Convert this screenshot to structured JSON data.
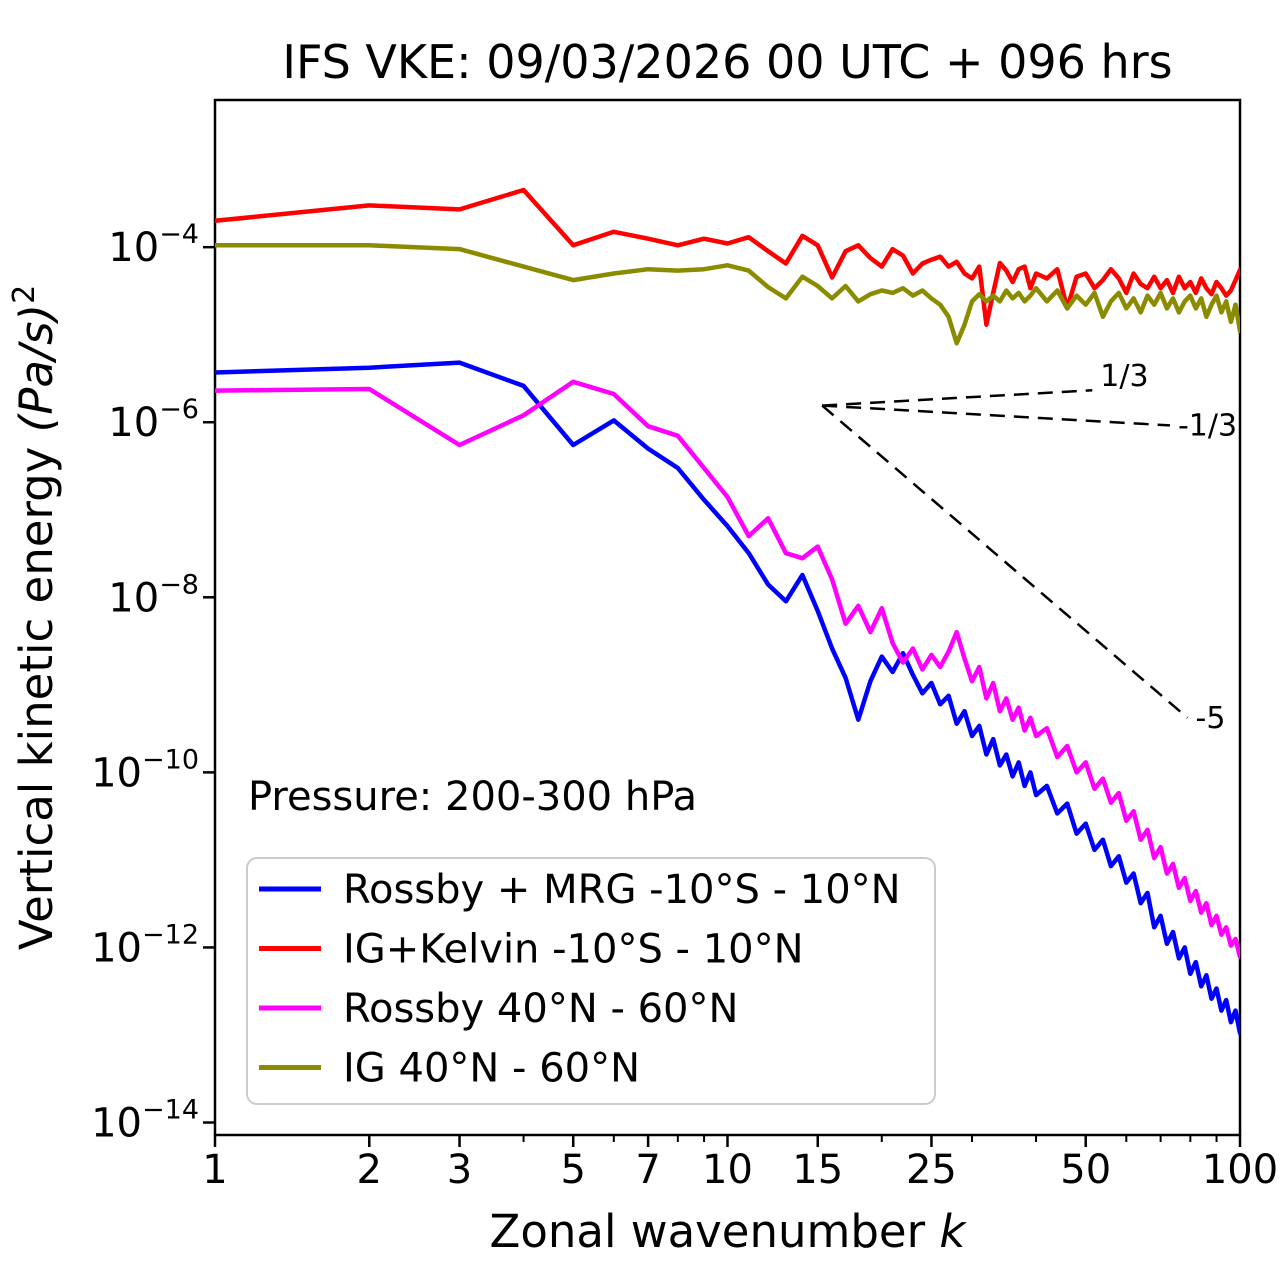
{
  "figure": {
    "title": "IFS VKE: 09/03/2026 00 UTC + 096 hrs"
  },
  "chart_data": {
    "type": "line",
    "title": "IFS VKE: 09/03/2026 00 UTC + 096 hrs",
    "xscale": "log",
    "yscale": "log",
    "xlabel_prefix": "Zonal wavenumber ",
    "xlabel_var": "k",
    "ylabel_prefix": "Vertical kinetic energy ",
    "ylabel_unit_italic": "(Pa/s)",
    "ylabel_exponent": "2",
    "xlim": [
      1,
      100
    ],
    "ylim": [
      7.2e-15,
      0.0048
    ],
    "grid": false,
    "legend_position": "lower left",
    "annotation": "Pressure: 200-300 hPa",
    "x_major_ticks": [
      1,
      2,
      3,
      5,
      7,
      10,
      15,
      25,
      50,
      100
    ],
    "x_minor_ticks": [
      4,
      6,
      8,
      9,
      20,
      30,
      40,
      60,
      70,
      80,
      90
    ],
    "y_major_tick_exponents": [
      -4,
      -6,
      -8,
      -10,
      -12,
      -14
    ],
    "series": [
      {
        "name": "Rossby + MRG -10°S - 10°N",
        "color": "#0000ff",
        "points": [
          [
            1,
            3.7e-06
          ],
          [
            2,
            4.2e-06
          ],
          [
            3,
            4.8e-06
          ],
          [
            4,
            2.6e-06
          ],
          [
            5,
            5.5e-07
          ],
          [
            6,
            1.05e-06
          ],
          [
            7,
            5e-07
          ],
          [
            8,
            3e-07
          ],
          [
            9,
            1.3e-07
          ],
          [
            10,
            6.5e-08
          ],
          [
            11,
            3.2e-08
          ],
          [
            12,
            1.4e-08
          ],
          [
            13,
            9e-09
          ],
          [
            14,
            1.8e-08
          ],
          [
            15,
            7e-09
          ],
          [
            16,
            2.6e-09
          ],
          [
            17,
            1.2e-09
          ],
          [
            18,
            4e-10
          ],
          [
            19,
            1.1e-09
          ],
          [
            20,
            2.1e-09
          ],
          [
            21,
            1.4e-09
          ],
          [
            22,
            2.3e-09
          ],
          [
            23,
            1.3e-09
          ],
          [
            24,
            8e-10
          ],
          [
            25,
            1.05e-09
          ],
          [
            26,
            6e-10
          ],
          [
            27,
            7.5e-10
          ],
          [
            28,
            3.6e-10
          ],
          [
            29,
            5e-10
          ],
          [
            30,
            2.6e-10
          ],
          [
            31,
            3.4e-10
          ],
          [
            32,
            1.6e-10
          ],
          [
            33,
            2.4e-10
          ],
          [
            34,
            1.2e-10
          ],
          [
            35,
            1.6e-10
          ],
          [
            36,
            9e-11
          ],
          [
            37,
            1.3e-10
          ],
          [
            38,
            7e-11
          ],
          [
            39,
            1e-10
          ],
          [
            40,
            5.5e-11
          ],
          [
            42,
            7e-11
          ],
          [
            44,
            3.4e-11
          ],
          [
            46,
            4.4e-11
          ],
          [
            48,
            2e-11
          ],
          [
            50,
            2.6e-11
          ],
          [
            52,
            1.3e-11
          ],
          [
            54,
            1.7e-11
          ],
          [
            56,
            8.5e-12
          ],
          [
            58,
            1.1e-11
          ],
          [
            60,
            5.5e-12
          ],
          [
            62,
            7e-12
          ],
          [
            64,
            3.2e-12
          ],
          [
            66,
            4.2e-12
          ],
          [
            68,
            1.7e-12
          ],
          [
            70,
            2.3e-12
          ],
          [
            72,
            1.1e-12
          ],
          [
            74,
            1.5e-12
          ],
          [
            76,
            7.5e-13
          ],
          [
            78,
            1e-12
          ],
          [
            80,
            5e-13
          ],
          [
            82,
            6.8e-13
          ],
          [
            84,
            3.6e-13
          ],
          [
            86,
            4.8e-13
          ],
          [
            88,
            2.6e-13
          ],
          [
            90,
            3.4e-13
          ],
          [
            92,
            1.9e-13
          ],
          [
            94,
            2.5e-13
          ],
          [
            96,
            1.4e-13
          ],
          [
            98,
            1.9e-13
          ],
          [
            100,
            1.05e-13
          ]
        ]
      },
      {
        "name": "IG+Kelvin -10°S - 10°N",
        "color": "#ff0000",
        "points": [
          [
            1,
            0.0002
          ],
          [
            2,
            0.0003
          ],
          [
            3,
            0.00027
          ],
          [
            4,
            0.00045
          ],
          [
            5,
            0.000105
          ],
          [
            6,
            0.00015
          ],
          [
            7,
            0.000125
          ],
          [
            8,
            0.000105
          ],
          [
            9,
            0.000125
          ],
          [
            10,
            0.00011
          ],
          [
            11,
            0.00013
          ],
          [
            12,
            9e-05
          ],
          [
            13,
            6.5e-05
          ],
          [
            14,
            0.000135
          ],
          [
            15,
            0.000105
          ],
          [
            16,
            4.5e-05
          ],
          [
            17,
            9e-05
          ],
          [
            18,
            0.000105
          ],
          [
            19,
            7.5e-05
          ],
          [
            20,
            6e-05
          ],
          [
            21,
            9.5e-05
          ],
          [
            22,
            8e-05
          ],
          [
            23,
            5e-05
          ],
          [
            24,
            6.5e-05
          ],
          [
            25,
            7.2e-05
          ],
          [
            26,
            7.8e-05
          ],
          [
            27,
            6e-05
          ],
          [
            28,
            6.8e-05
          ],
          [
            29,
            5e-05
          ],
          [
            30,
            4.4e-05
          ],
          [
            31,
            6e-05
          ],
          [
            32,
            1.3e-05
          ],
          [
            33,
            3e-05
          ],
          [
            34,
            6.6e-05
          ],
          [
            35,
            5.4e-05
          ],
          [
            36,
            4e-05
          ],
          [
            37,
            5.6e-05
          ],
          [
            38,
            6e-05
          ],
          [
            39,
            3.4e-05
          ],
          [
            40,
            5e-05
          ],
          [
            42,
            4.4e-05
          ],
          [
            44,
            5.6e-05
          ],
          [
            46,
            2e-05
          ],
          [
            48,
            4.6e-05
          ],
          [
            50,
            5e-05
          ],
          [
            52,
            3.4e-05
          ],
          [
            54,
            4.2e-05
          ],
          [
            56,
            5.6e-05
          ],
          [
            58,
            4.4e-05
          ],
          [
            60,
            3e-05
          ],
          [
            62,
            5e-05
          ],
          [
            64,
            3.8e-05
          ],
          [
            66,
            3.4e-05
          ],
          [
            68,
            4.6e-05
          ],
          [
            70,
            3.4e-05
          ],
          [
            72,
            4.2e-05
          ],
          [
            74,
            3e-05
          ],
          [
            76,
            4.6e-05
          ],
          [
            78,
            3.4e-05
          ],
          [
            80,
            4e-05
          ],
          [
            82,
            3e-05
          ],
          [
            84,
            4.4e-05
          ],
          [
            86,
            3.4e-05
          ],
          [
            88,
            2.9e-05
          ],
          [
            90,
            4e-05
          ],
          [
            92,
            3.4e-05
          ],
          [
            94,
            2.8e-05
          ],
          [
            96,
            3.2e-05
          ],
          [
            98,
            4.2e-05
          ],
          [
            100,
            5.5e-05
          ]
        ]
      },
      {
        "name": "Rossby 40°N - 60°N",
        "color": "#ff00ff",
        "points": [
          [
            1,
            2.3e-06
          ],
          [
            2,
            2.4e-06
          ],
          [
            3,
            5.5e-07
          ],
          [
            4,
            1.2e-06
          ],
          [
            5,
            2.9e-06
          ],
          [
            6,
            2.1e-06
          ],
          [
            7,
            9e-07
          ],
          [
            8,
            7e-07
          ],
          [
            9,
            3e-07
          ],
          [
            10,
            1.4e-07
          ],
          [
            11,
            5e-08
          ],
          [
            12,
            8e-08
          ],
          [
            13,
            3.2e-08
          ],
          [
            14,
            2.8e-08
          ],
          [
            15,
            3.8e-08
          ],
          [
            16,
            1.6e-08
          ],
          [
            17,
            5e-09
          ],
          [
            18,
            8e-09
          ],
          [
            19,
            4e-09
          ],
          [
            20,
            7.5e-09
          ],
          [
            21,
            3e-09
          ],
          [
            22,
            1.8e-09
          ],
          [
            23,
            2.6e-09
          ],
          [
            24,
            1.5e-09
          ],
          [
            25,
            2.2e-09
          ],
          [
            26,
            1.6e-09
          ],
          [
            27,
            2.4e-09
          ],
          [
            28,
            4e-09
          ],
          [
            29,
            2e-09
          ],
          [
            30,
            1.1e-09
          ],
          [
            31,
            1.6e-09
          ],
          [
            32,
            7e-10
          ],
          [
            33,
            1.05e-09
          ],
          [
            34,
            5e-10
          ],
          [
            35,
            7e-10
          ],
          [
            36,
            4e-10
          ],
          [
            37,
            5.5e-10
          ],
          [
            38,
            3e-10
          ],
          [
            39,
            4.2e-10
          ],
          [
            40,
            2.6e-10
          ],
          [
            42,
            3.2e-10
          ],
          [
            44,
            1.5e-10
          ],
          [
            46,
            2e-10
          ],
          [
            48,
            1e-10
          ],
          [
            50,
            1.3e-10
          ],
          [
            52,
            6.5e-11
          ],
          [
            54,
            8.5e-11
          ],
          [
            56,
            4.5e-11
          ],
          [
            58,
            5.8e-11
          ],
          [
            60,
            2.8e-11
          ],
          [
            62,
            3.6e-11
          ],
          [
            64,
            1.7e-11
          ],
          [
            66,
            2.2e-11
          ],
          [
            68,
            1.05e-11
          ],
          [
            70,
            1.4e-11
          ],
          [
            72,
            7e-12
          ],
          [
            74,
            9e-12
          ],
          [
            76,
            4.8e-12
          ],
          [
            78,
            6.2e-12
          ],
          [
            80,
            3.4e-12
          ],
          [
            82,
            4.4e-12
          ],
          [
            84,
            2.5e-12
          ],
          [
            86,
            3.2e-12
          ],
          [
            88,
            1.8e-12
          ],
          [
            90,
            2.3e-12
          ],
          [
            92,
            1.4e-12
          ],
          [
            94,
            1.7e-12
          ],
          [
            96,
            1.05e-12
          ],
          [
            98,
            1.25e-12
          ],
          [
            100,
            7.8e-13
          ]
        ]
      },
      {
        "name": "IG 40°N - 60°N",
        "color": "#8b8b00",
        "points": [
          [
            1,
            0.000105
          ],
          [
            2,
            0.000105
          ],
          [
            3,
            9.5e-05
          ],
          [
            4,
            6e-05
          ],
          [
            5,
            4.2e-05
          ],
          [
            6,
            5e-05
          ],
          [
            7,
            5.6e-05
          ],
          [
            8,
            5.4e-05
          ],
          [
            9,
            5.6e-05
          ],
          [
            10,
            6.2e-05
          ],
          [
            11,
            5.4e-05
          ],
          [
            12,
            3.5e-05
          ],
          [
            13,
            2.6e-05
          ],
          [
            14,
            4.6e-05
          ],
          [
            15,
            3.6e-05
          ],
          [
            16,
            2.6e-05
          ],
          [
            17,
            3.6e-05
          ],
          [
            18,
            2.4e-05
          ],
          [
            19,
            2.9e-05
          ],
          [
            20,
            3.2e-05
          ],
          [
            21,
            3e-05
          ],
          [
            22,
            3.4e-05
          ],
          [
            23,
            2.8e-05
          ],
          [
            24,
            3.2e-05
          ],
          [
            25,
            2.6e-05
          ],
          [
            26,
            2.2e-05
          ],
          [
            27,
            1.6e-05
          ],
          [
            28,
            8e-06
          ],
          [
            29,
            1.3e-05
          ],
          [
            30,
            2.4e-05
          ],
          [
            31,
            2.9e-05
          ],
          [
            32,
            2.4e-05
          ],
          [
            33,
            2.8e-05
          ],
          [
            34,
            2.4e-05
          ],
          [
            35,
            3.2e-05
          ],
          [
            36,
            2.6e-05
          ],
          [
            37,
            3e-05
          ],
          [
            38,
            2.4e-05
          ],
          [
            39,
            2.8e-05
          ],
          [
            40,
            3.4e-05
          ],
          [
            42,
            2.4e-05
          ],
          [
            44,
            3.2e-05
          ],
          [
            46,
            2e-05
          ],
          [
            48,
            2.8e-05
          ],
          [
            50,
            2.2e-05
          ],
          [
            52,
            3e-05
          ],
          [
            54,
            1.6e-05
          ],
          [
            56,
            2.4e-05
          ],
          [
            58,
            3e-05
          ],
          [
            60,
            2e-05
          ],
          [
            62,
            2.6e-05
          ],
          [
            64,
            1.8e-05
          ],
          [
            66,
            2.8e-05
          ],
          [
            68,
            2.2e-05
          ],
          [
            70,
            3e-05
          ],
          [
            72,
            2e-05
          ],
          [
            74,
            2.6e-05
          ],
          [
            76,
            1.8e-05
          ],
          [
            78,
            2.4e-05
          ],
          [
            80,
            2.8e-05
          ],
          [
            82,
            2e-05
          ],
          [
            84,
            2.6e-05
          ],
          [
            86,
            1.6e-05
          ],
          [
            88,
            2.2e-05
          ],
          [
            90,
            2.8e-05
          ],
          [
            92,
            1.8e-05
          ],
          [
            94,
            2.4e-05
          ],
          [
            96,
            1.4e-05
          ],
          [
            98,
            2.2e-05
          ],
          [
            100,
            1.1e-05
          ]
        ]
      }
    ],
    "reference_lines": [
      {
        "label": "1/3",
        "slope": "1/3",
        "from": [
          15.3,
          1.55e-06
        ],
        "to": [
          51.5,
          2.32e-06
        ]
      },
      {
        "label": "-1/3",
        "slope": "-1/3",
        "from": [
          15.3,
          1.55e-06
        ],
        "to": [
          73,
          9.2e-07
        ]
      },
      {
        "label": "-5",
        "slope": "-5",
        "from": [
          15.3,
          1.55e-06
        ],
        "to": [
          79,
          4.2e-10
        ]
      }
    ],
    "reference_line_color": "#000000"
  }
}
